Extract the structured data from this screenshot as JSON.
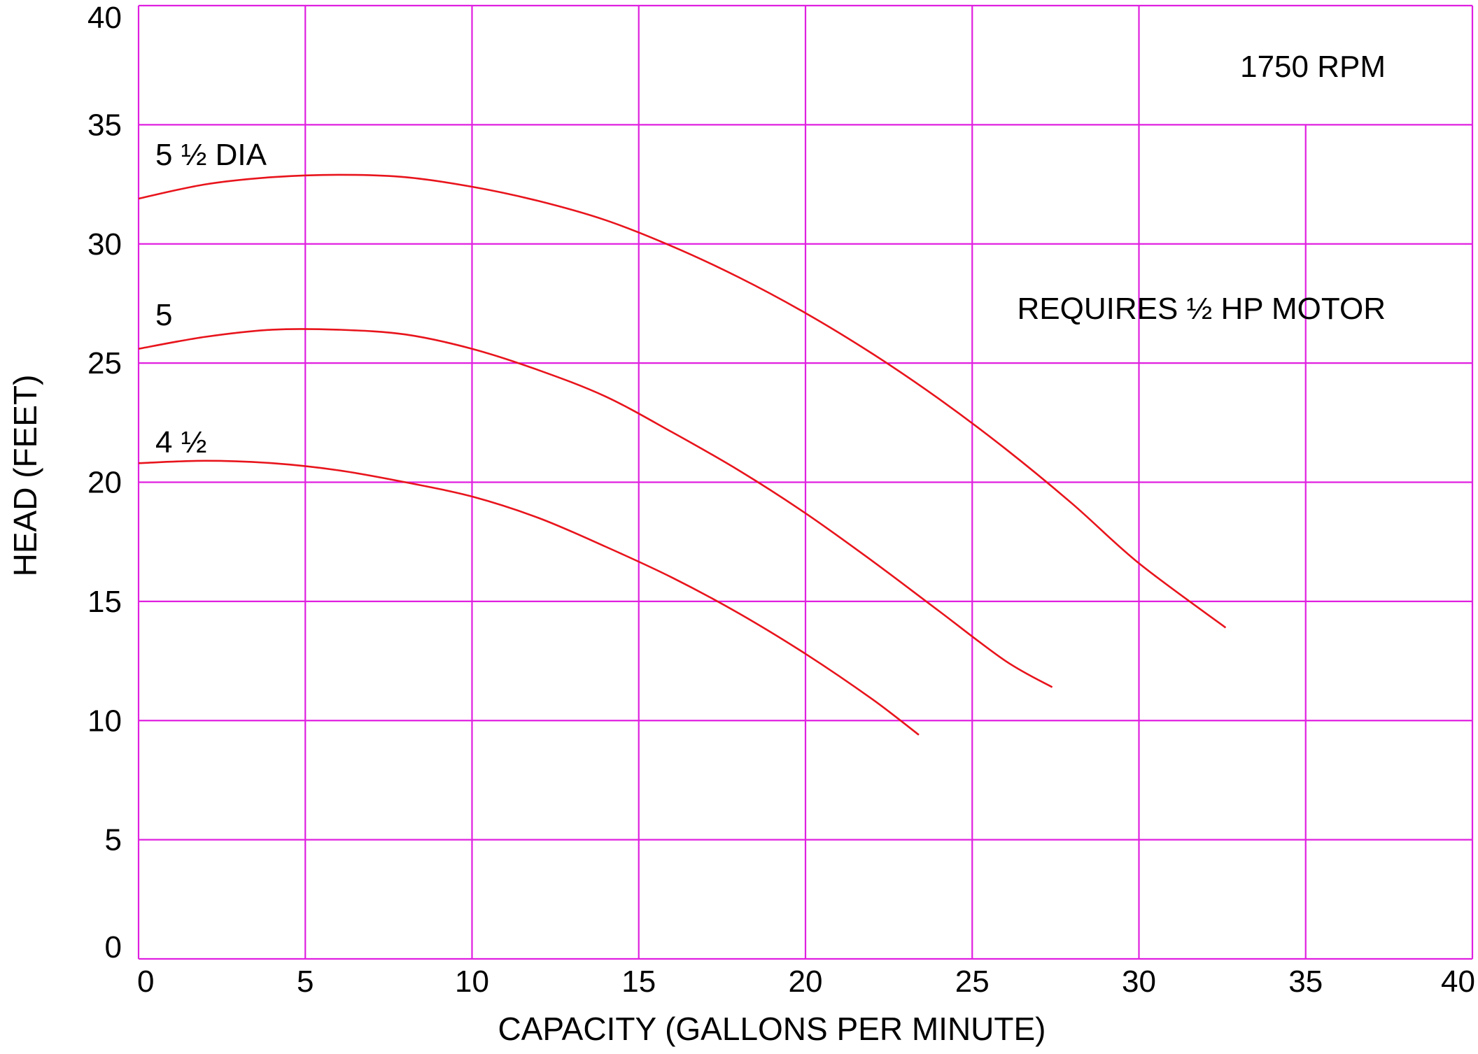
{
  "chart_data": {
    "type": "line",
    "title": "",
    "xlabel": "CAPACITY (GALLONS PER MINUTE)",
    "ylabel": "HEAD (FEET)",
    "xlim": [
      0,
      40
    ],
    "ylim": [
      0,
      40
    ],
    "xticks": [
      "0",
      "5",
      "10",
      "15",
      "20",
      "25",
      "30",
      "35",
      "40"
    ],
    "yticks": [
      "0",
      "5",
      "10",
      "15",
      "20",
      "25",
      "30",
      "35",
      "40"
    ],
    "grid": true,
    "annotations": {
      "speed": "1750 RPM",
      "motor": "REQUIRES ½ HP MOTOR"
    },
    "series": [
      {
        "name": "5 ½ DIA",
        "x": [
          0,
          2,
          4,
          6,
          8,
          10,
          12,
          14,
          16,
          18,
          20,
          22,
          24,
          26,
          28,
          30,
          32.6
        ],
        "y": [
          31.9,
          32.5,
          32.8,
          32.9,
          32.8,
          32.4,
          31.8,
          31.0,
          29.9,
          28.6,
          27.1,
          25.4,
          23.5,
          21.4,
          19.1,
          16.6,
          13.9
        ]
      },
      {
        "name": "5",
        "x": [
          0,
          2,
          4,
          6,
          8,
          10,
          12,
          14,
          16,
          18,
          20,
          22,
          24,
          26,
          27.4
        ],
        "y": [
          25.6,
          26.1,
          26.4,
          26.4,
          26.2,
          25.6,
          24.7,
          23.6,
          22.1,
          20.5,
          18.7,
          16.7,
          14.6,
          12.5,
          11.4
        ]
      },
      {
        "name": "4 ½",
        "x": [
          0,
          2,
          4,
          6,
          8,
          10,
          12,
          14,
          16,
          18,
          20,
          22,
          23.4
        ],
        "y": [
          20.8,
          20.9,
          20.8,
          20.5,
          20.0,
          19.4,
          18.5,
          17.3,
          16.0,
          14.5,
          12.8,
          10.9,
          9.4
        ]
      }
    ],
    "colors": {
      "grid": "#e020e0",
      "curve": "#e8141c",
      "text": "#000000"
    }
  }
}
